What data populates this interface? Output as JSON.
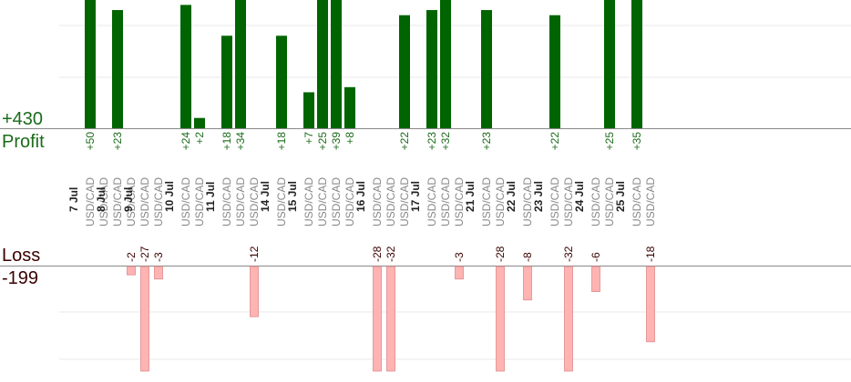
{
  "summary": {
    "profit_total": "+430",
    "profit_label": "Profit",
    "loss_label": "Loss",
    "loss_total": "-199"
  },
  "chart_data": {
    "type": "bar",
    "colors": {
      "profit": "#006400",
      "profit_label": "#1a6b1a",
      "loss": "#ffb3b3",
      "loss_stroke": "#e08a8a",
      "date": "#222222",
      "pair": "#888888",
      "loss_label": "#3a0000"
    },
    "columns": [
      {
        "date": "7 Jul",
        "pair": "USD/CAD",
        "profit": 50
      },
      {
        "date": "",
        "pair": "USD/CAD",
        "profit": null
      },
      {
        "date": "8 Jul",
        "pair": "USD/CAD",
        "profit": 23
      },
      {
        "date": "",
        "pair": "USD/CAD",
        "loss": -2
      },
      {
        "date": "9 Jul",
        "pair": "USD/CAD",
        "loss": -27
      },
      {
        "date": "",
        "pair": "USD/CAD",
        "loss": -3
      },
      {
        "date": "",
        "pair": "",
        "profit": null
      },
      {
        "date": "10 Jul",
        "pair": "USD/CAD",
        "profit": 24
      },
      {
        "date": "",
        "pair": "USD/CAD",
        "profit": 2
      },
      {
        "date": "",
        "pair": "",
        "profit": null
      },
      {
        "date": "11 Jul",
        "pair": "USD/CAD",
        "profit": 18
      },
      {
        "date": "",
        "pair": "USD/CAD",
        "profit": 34
      },
      {
        "date": "",
        "pair": "USD/CAD",
        "loss": -12
      },
      {
        "date": "",
        "pair": "",
        "profit": null
      },
      {
        "date": "14 Jul",
        "pair": "USD/CAD",
        "profit": 18
      },
      {
        "date": "",
        "pair": "",
        "profit": null
      },
      {
        "date": "15 Jul",
        "pair": "USD/CAD",
        "profit": 7
      },
      {
        "date": "",
        "pair": "USD/CAD",
        "profit": 25
      },
      {
        "date": "",
        "pair": "USD/CAD",
        "profit": 39
      },
      {
        "date": "",
        "pair": "USD/CAD",
        "profit": 8
      },
      {
        "date": "",
        "pair": "",
        "profit": null
      },
      {
        "date": "16 Jul",
        "pair": "USD/CAD",
        "loss": -28
      },
      {
        "date": "",
        "pair": "USD/CAD",
        "loss": -32
      },
      {
        "date": "",
        "pair": "USD/CAD",
        "profit": 22
      },
      {
        "date": "",
        "pair": "",
        "profit": null
      },
      {
        "date": "17 Jul",
        "pair": "USD/CAD",
        "profit": 23
      },
      {
        "date": "",
        "pair": "USD/CAD",
        "profit": 32
      },
      {
        "date": "",
        "pair": "USD/CAD",
        "loss": -3
      },
      {
        "date": "",
        "pair": "",
        "profit": null
      },
      {
        "date": "21 Jul",
        "pair": "USD/CAD",
        "profit": 23
      },
      {
        "date": "",
        "pair": "USD/CAD",
        "loss": -28
      },
      {
        "date": "",
        "pair": "",
        "profit": null
      },
      {
        "date": "22 Jul",
        "pair": "USD/CAD",
        "loss": -8
      },
      {
        "date": "",
        "pair": "",
        "profit": null
      },
      {
        "date": "23 Jul",
        "pair": "USD/CAD",
        "profit": 22
      },
      {
        "date": "",
        "pair": "USD/CAD",
        "loss": -32
      },
      {
        "date": "",
        "pair": "",
        "profit": null
      },
      {
        "date": "24 Jul",
        "pair": "USD/CAD",
        "loss": -6
      },
      {
        "date": "",
        "pair": "USD/CAD",
        "profit": 25
      },
      {
        "date": "",
        "pair": "",
        "profit": null
      },
      {
        "date": "25 Jul",
        "pair": "USD/CAD",
        "profit": 35
      },
      {
        "date": "",
        "pair": "USD/CAD",
        "loss": -18
      }
    ],
    "profit_ylim": [
      0,
      25
    ],
    "loss_ylim": [
      -25,
      0
    ],
    "grid": true
  }
}
